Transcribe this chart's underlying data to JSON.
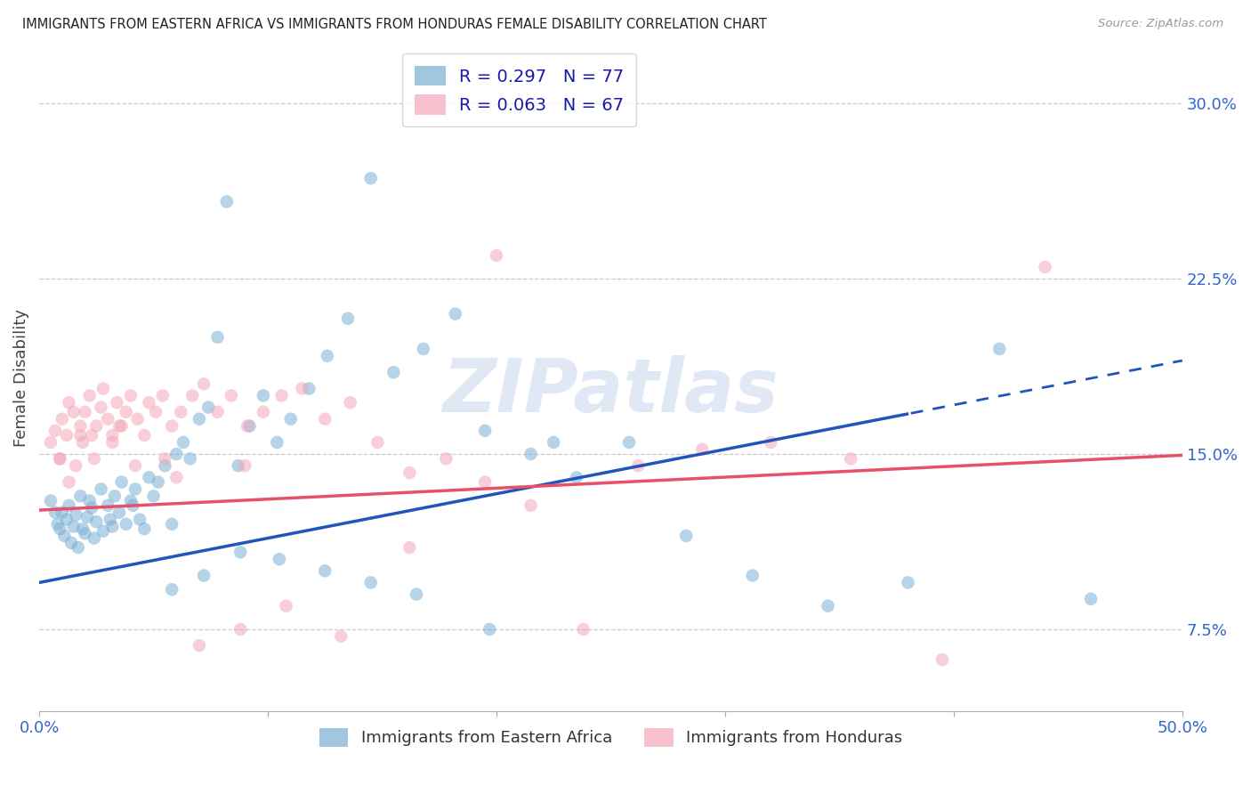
{
  "title": "IMMIGRANTS FROM EASTERN AFRICA VS IMMIGRANTS FROM HONDURAS FEMALE DISABILITY CORRELATION CHART",
  "source": "Source: ZipAtlas.com",
  "ylabel": "Female Disability",
  "xlim": [
    0.0,
    0.5
  ],
  "ylim": [
    0.04,
    0.325
  ],
  "yticks": [
    0.075,
    0.15,
    0.225,
    0.3
  ],
  "ytick_labels": [
    "7.5%",
    "15.0%",
    "22.5%",
    "30.0%"
  ],
  "xtick_positions": [
    0.0,
    0.1,
    0.2,
    0.3,
    0.4,
    0.5
  ],
  "xtick_labels_show": [
    "0.0%",
    "",
    "",
    "",
    "",
    "50.0%"
  ],
  "grid_color": "#cccccc",
  "background_color": "#ffffff",
  "blue_color": "#7bafd4",
  "pink_color": "#f4a7b9",
  "blue_line_color": "#2255bb",
  "pink_line_color": "#e8506a",
  "blue_R": 0.297,
  "blue_N": 77,
  "pink_R": 0.063,
  "pink_N": 67,
  "label_blue": "Immigrants from Eastern Africa",
  "label_pink": "Immigrants from Honduras",
  "blue_line_intercept": 0.095,
  "blue_line_slope": 0.19,
  "pink_line_intercept": 0.126,
  "pink_line_slope": 0.047,
  "blue_scatter_x": [
    0.005,
    0.007,
    0.008,
    0.009,
    0.01,
    0.011,
    0.012,
    0.013,
    0.014,
    0.015,
    0.016,
    0.017,
    0.018,
    0.019,
    0.02,
    0.021,
    0.022,
    0.023,
    0.024,
    0.025,
    0.027,
    0.028,
    0.03,
    0.031,
    0.032,
    0.033,
    0.035,
    0.036,
    0.038,
    0.04,
    0.041,
    0.042,
    0.044,
    0.046,
    0.048,
    0.05,
    0.052,
    0.055,
    0.058,
    0.06,
    0.063,
    0.066,
    0.07,
    0.074,
    0.078,
    0.082,
    0.087,
    0.092,
    0.098,
    0.104,
    0.11,
    0.118,
    0.126,
    0.135,
    0.145,
    0.155,
    0.168,
    0.182,
    0.197,
    0.215,
    0.235,
    0.258,
    0.283,
    0.312,
    0.345,
    0.38,
    0.42,
    0.46,
    0.225,
    0.195,
    0.165,
    0.145,
    0.125,
    0.105,
    0.088,
    0.072,
    0.058
  ],
  "blue_scatter_y": [
    0.13,
    0.125,
    0.12,
    0.118,
    0.125,
    0.115,
    0.122,
    0.128,
    0.112,
    0.119,
    0.124,
    0.11,
    0.132,
    0.118,
    0.116,
    0.123,
    0.13,
    0.127,
    0.114,
    0.121,
    0.135,
    0.117,
    0.128,
    0.122,
    0.119,
    0.132,
    0.125,
    0.138,
    0.12,
    0.13,
    0.128,
    0.135,
    0.122,
    0.118,
    0.14,
    0.132,
    0.138,
    0.145,
    0.12,
    0.15,
    0.155,
    0.148,
    0.165,
    0.17,
    0.2,
    0.258,
    0.145,
    0.162,
    0.175,
    0.155,
    0.165,
    0.178,
    0.192,
    0.208,
    0.268,
    0.185,
    0.195,
    0.21,
    0.075,
    0.15,
    0.14,
    0.155,
    0.115,
    0.098,
    0.085,
    0.095,
    0.195,
    0.088,
    0.155,
    0.16,
    0.09,
    0.095,
    0.1,
    0.105,
    0.108,
    0.098,
    0.092
  ],
  "pink_scatter_x": [
    0.005,
    0.007,
    0.009,
    0.01,
    0.012,
    0.013,
    0.015,
    0.016,
    0.018,
    0.019,
    0.02,
    0.022,
    0.023,
    0.025,
    0.027,
    0.028,
    0.03,
    0.032,
    0.034,
    0.036,
    0.038,
    0.04,
    0.043,
    0.046,
    0.048,
    0.051,
    0.054,
    0.058,
    0.062,
    0.067,
    0.072,
    0.078,
    0.084,
    0.091,
    0.098,
    0.106,
    0.115,
    0.125,
    0.136,
    0.148,
    0.162,
    0.178,
    0.195,
    0.215,
    0.238,
    0.262,
    0.29,
    0.32,
    0.355,
    0.395,
    0.44,
    0.162,
    0.132,
    0.108,
    0.088,
    0.07,
    0.055,
    0.042,
    0.032,
    0.024,
    0.018,
    0.013,
    0.009,
    0.2,
    0.035,
    0.06,
    0.09
  ],
  "pink_scatter_y": [
    0.155,
    0.16,
    0.148,
    0.165,
    0.158,
    0.172,
    0.168,
    0.145,
    0.162,
    0.155,
    0.168,
    0.175,
    0.158,
    0.162,
    0.17,
    0.178,
    0.165,
    0.158,
    0.172,
    0.162,
    0.168,
    0.175,
    0.165,
    0.158,
    0.172,
    0.168,
    0.175,
    0.162,
    0.168,
    0.175,
    0.18,
    0.168,
    0.175,
    0.162,
    0.168,
    0.175,
    0.178,
    0.165,
    0.172,
    0.155,
    0.142,
    0.148,
    0.138,
    0.128,
    0.075,
    0.145,
    0.152,
    0.155,
    0.148,
    0.062,
    0.23,
    0.11,
    0.072,
    0.085,
    0.075,
    0.068,
    0.148,
    0.145,
    0.155,
    0.148,
    0.158,
    0.138,
    0.148,
    0.235,
    0.162,
    0.14,
    0.145
  ]
}
